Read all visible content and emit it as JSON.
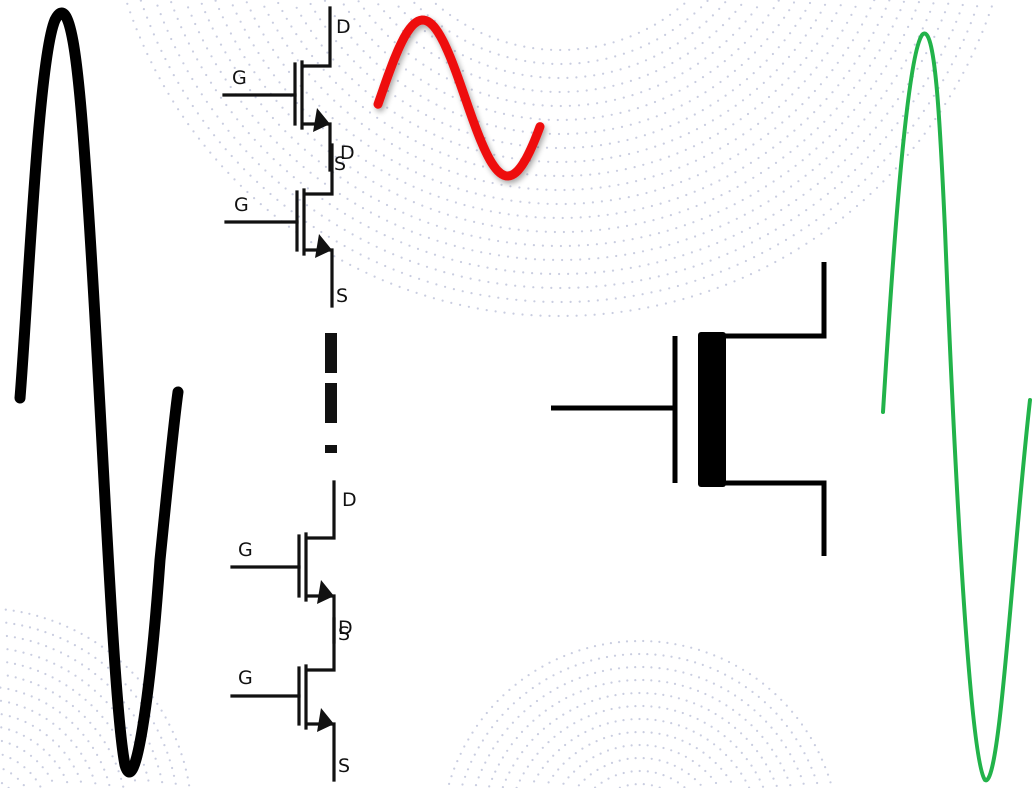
{
  "colors": {
    "background": "#ffffff",
    "pattern_dots": "#c9cde0",
    "wave_black": "#000000",
    "wave_red": "#ee1111",
    "wave_green": "#22b34a",
    "symbol_stroke": "#000000"
  },
  "mosfet_stack": {
    "transistors": [
      {
        "drain_label": "D",
        "gate_label": "G",
        "source_label": "S"
      },
      {
        "drain_label": "D",
        "gate_label": "G",
        "source_label": "S"
      },
      {
        "drain_label": "D",
        "gate_label": "G",
        "source_label": "S"
      },
      {
        "drain_label": "D",
        "gate_label": "G",
        "source_label": "S"
      }
    ]
  },
  "icons": {
    "large_symbol": "mosfet-transistor-icon",
    "continuation": "vertical-ellipsis-icon",
    "waves": [
      "sine-wave-icon",
      "sine-wave-icon",
      "sine-wave-icon"
    ]
  }
}
